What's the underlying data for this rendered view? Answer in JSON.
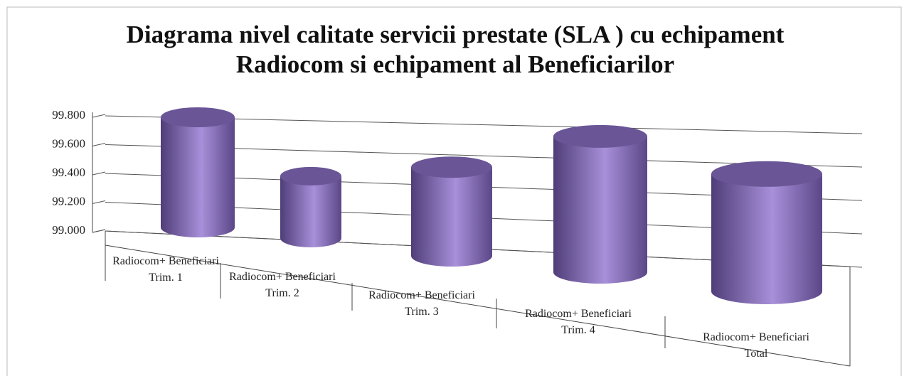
{
  "chart_data": {
    "type": "cylinder",
    "title": "Diagrama nivel calitate servicii prestate (SLA ) cu echipament Radiocom si echipament al Beneficiarilor",
    "categories": [
      "Radiocom+ Beneficiari\nTrim. 1",
      "Radiocom+ Beneficiari\nTrim. 2",
      "Radiocom+ Beneficiari\nTrim. 3",
      "Radiocom+ Beneficiari\nTrim. 4",
      "Radiocom+ Beneficiari\nTotal"
    ],
    "values": [
      99.76,
      99.36,
      99.48,
      99.7,
      99.56
    ],
    "color": "#8a70c0",
    "ylim": [
      99.0,
      99.8
    ],
    "yticks": [
      {
        "value": 99.0,
        "label": "99.000"
      },
      {
        "value": 99.2,
        "label": "99.200"
      },
      {
        "value": 99.4,
        "label": "99.400"
      },
      {
        "value": 99.6,
        "label": "99.600"
      },
      {
        "value": 99.8,
        "label": "99.800"
      }
    ],
    "grid": true
  }
}
